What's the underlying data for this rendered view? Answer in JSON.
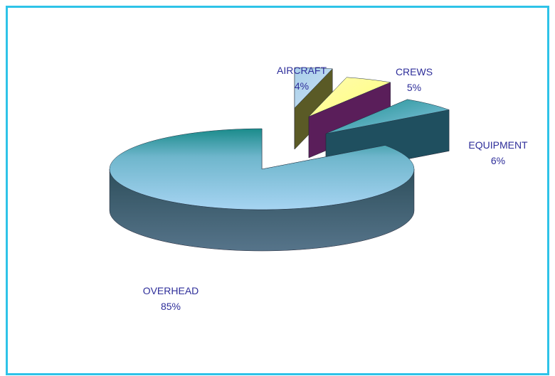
{
  "chart_data": {
    "type": "pie",
    "style": "3d-exploded",
    "title": "",
    "slices": [
      {
        "label": "OVERHEAD",
        "percent_label": "85%",
        "value": 85,
        "color": "#a6d4f2",
        "side": "#4e6a80"
      },
      {
        "label": "AIRCRAFT",
        "percent_label": "4%",
        "value": 4,
        "color": "#b9d8f0",
        "side": "#5a5a26"
      },
      {
        "label": "CREWS",
        "percent_label": "5%",
        "value": 5,
        "color": "#ffff99",
        "side": "#5a1e5a"
      },
      {
        "label": "EQUIPMENT",
        "percent_label": "6%",
        "value": 6,
        "color": "#6fb8d8",
        "side": "#1f4f5f"
      }
    ]
  },
  "colors": {
    "frame_border": "#2ec3e8",
    "label_text": "#2e2e9a"
  }
}
